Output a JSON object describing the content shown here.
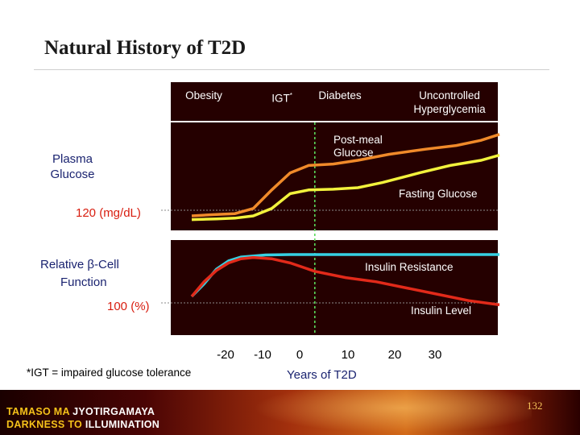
{
  "slide": {
    "title": "Natural History of T2D",
    "footnote": "*IGT = impaired glucose tolerance",
    "page_number": "132",
    "banner_line1_a": "TAMASO MA ",
    "banner_line1_b": "JYOTIRGAMAYA",
    "banner_line2_a": "DARKNESS TO ",
    "banner_line2_b": "ILLUMINATION"
  },
  "stages": {
    "obesity": "Obesity",
    "igt": "IGT",
    "igt_mark": "*",
    "diabetes": "Diabetes",
    "uncontrolled_1": "Uncontrolled",
    "uncontrolled_2": "Hyperglycemia"
  },
  "chart_data": {
    "type": "line",
    "xlabel": "Years of  T2D",
    "x_ticks": [
      "-20",
      "-10",
      "0",
      "10",
      "20",
      "30"
    ],
    "xlim": [
      -20,
      30
    ],
    "diagnosis_marker_x": 0,
    "panels": [
      {
        "ylabel_1": "Plasma",
        "ylabel_2": "Glucose",
        "reference_label": "120 (mg/dL)",
        "series": [
          {
            "name_1": "Post-meal",
            "name_2": "Glucose",
            "color": "#f08a2a",
            "points": [
              [
                -20,
                0.0
              ],
              [
                -16,
                0.02
              ],
              [
                -13,
                0.03
              ],
              [
                -10,
                0.1
              ],
              [
                -7,
                0.35
              ],
              [
                -4,
                0.58
              ],
              [
                -1,
                0.68
              ],
              [
                3,
                0.7
              ],
              [
                7,
                0.75
              ],
              [
                12,
                0.83
              ],
              [
                18,
                0.9
              ],
              [
                23,
                0.95
              ],
              [
                27,
                1.02
              ],
              [
                30,
                1.1
              ]
            ]
          },
          {
            "name_1": "Fasting Glucose",
            "name_2": "",
            "color": "#f2f23c",
            "points": [
              [
                -20,
                -0.05
              ],
              [
                -16,
                -0.04
              ],
              [
                -13,
                -0.03
              ],
              [
                -10,
                0.0
              ],
              [
                -7,
                0.1
              ],
              [
                -4,
                0.3
              ],
              [
                -1,
                0.35
              ],
              [
                3,
                0.36
              ],
              [
                7,
                0.38
              ],
              [
                11,
                0.45
              ],
              [
                17,
                0.58
              ],
              [
                22,
                0.68
              ],
              [
                27,
                0.75
              ],
              [
                30,
                0.82
              ]
            ]
          }
        ]
      },
      {
        "ylabel_1": "Relative ",
        "ylabel_beta": "β",
        "ylabel_1b": "-Cell",
        "ylabel_2": "Function",
        "reference_label": "100 (%)",
        "series": [
          {
            "name_1": "Insulin Resistance",
            "color": "#36d0e2",
            "points": [
              [
                -20,
                0.0
              ],
              [
                -18,
                0.3
              ],
              [
                -16,
                0.65
              ],
              [
                -14,
                0.85
              ],
              [
                -12,
                0.94
              ],
              [
                -8,
                0.99
              ],
              [
                -4,
                1.0
              ],
              [
                0,
                1.0
              ],
              [
                5,
                1.0
              ],
              [
                10,
                1.0
              ],
              [
                30,
                1.0
              ]
            ]
          },
          {
            "name_1": "Insulin Level",
            "color": "#e22a1a",
            "points": [
              [
                -20,
                0.0
              ],
              [
                -18,
                0.35
              ],
              [
                -16,
                0.62
              ],
              [
                -14,
                0.8
              ],
              [
                -12,
                0.9
              ],
              [
                -10,
                0.93
              ],
              [
                -7,
                0.9
              ],
              [
                -4,
                0.8
              ],
              [
                0,
                0.6
              ],
              [
                5,
                0.45
              ],
              [
                10,
                0.35
              ],
              [
                15,
                0.2
              ],
              [
                20,
                0.05
              ],
              [
                25,
                -0.1
              ],
              [
                30,
                -0.2
              ]
            ]
          }
        ]
      }
    ]
  }
}
